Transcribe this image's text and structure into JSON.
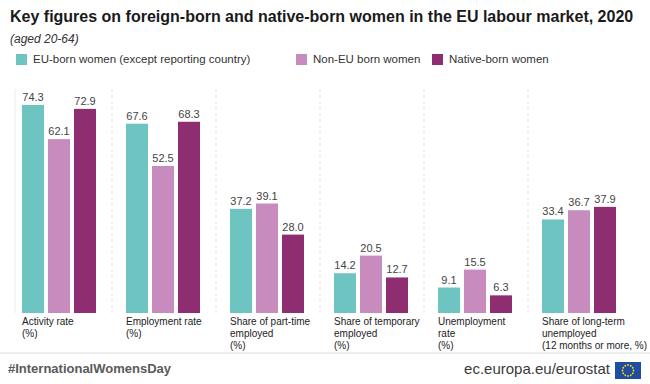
{
  "chart_data": {
    "type": "bar",
    "title": "Key figures on foreign-born and native-born women in the EU labour market, 2020",
    "subtitle": "(aged 20-64)",
    "categories": [
      "Activity rate\n(%)",
      "Employment rate\n(%)",
      "Share of part-time\nemployed\n(%)",
      "Share of temporary\nemployed\n(%)",
      "Unemployment\nrate\n(%)",
      "Share of long-term\nunemployed\n(12 months or more, %)"
    ],
    "series": [
      {
        "name": "EU-born women (except reporting country)",
        "color": "#6ec4c1",
        "values": [
          74.3,
          67.6,
          37.2,
          14.2,
          9.1,
          33.4
        ]
      },
      {
        "name": "Non-EU born women",
        "color": "#c78cbd",
        "values": [
          62.1,
          52.5,
          39.1,
          20.5,
          15.5,
          36.7
        ]
      },
      {
        "name": "Native-born women",
        "color": "#8e2d6f",
        "values": [
          72.9,
          68.3,
          28.0,
          12.7,
          6.3,
          37.9
        ],
        "value_labels": [
          "72.9",
          "68.3",
          "28.0",
          "12.7",
          "6.3",
          "37.9"
        ]
      }
    ],
    "ylim": [
      0,
      80
    ],
    "tick_labels": false,
    "grid": false,
    "data_labels": true,
    "legend": "top",
    "annotations": [
      "#InternationalWomensDay",
      "ec.europa.eu/eurostat"
    ]
  }
}
